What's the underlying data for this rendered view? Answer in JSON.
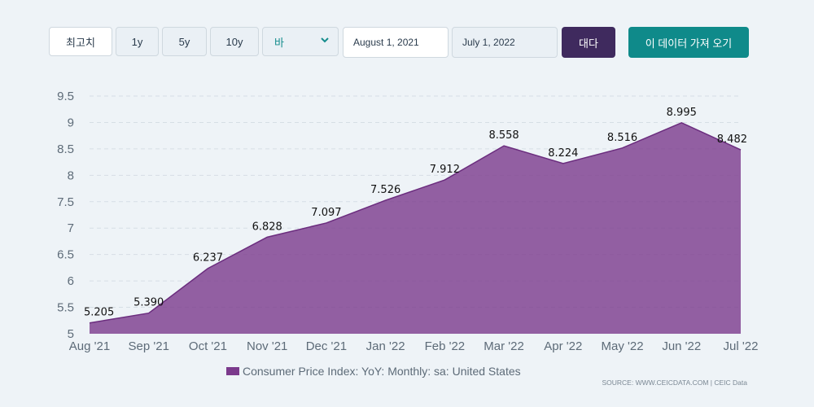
{
  "toolbar": {
    "max_label": "최고치",
    "range_1y": "1y",
    "range_5y": "5y",
    "range_10y": "10y",
    "chart_type_value": "바",
    "start_date": "August 1, 2021",
    "end_date": "July 1, 2022",
    "apply_label": "대다",
    "get_data_label": "이 데이터 가져 오기"
  },
  "legend": {
    "label": "Consumer Price Index: YoY: Monthly: sa: United States"
  },
  "source": "SOURCE: WWW.CEICDATA.COM | CEIC Data",
  "colors": {
    "series_fill": "#7b3a8c",
    "series_line": "#6b2d7e",
    "apply_button": "#3f2a5e",
    "get_data_button": "#0f8a8a",
    "background": "#eef3f7"
  },
  "chart_data": {
    "type": "area",
    "title": "",
    "xlabel": "",
    "ylabel": "",
    "categories": [
      "Aug '21",
      "Sep '21",
      "Oct '21",
      "Nov '21",
      "Dec '21",
      "Jan '22",
      "Feb '22",
      "Mar '22",
      "Apr '22",
      "May '22",
      "Jun '22",
      "Jul '22"
    ],
    "series": [
      {
        "name": "Consumer Price Index: YoY: Monthly: sa: United States",
        "values": [
          5.205,
          5.39,
          6.237,
          6.828,
          7.097,
          7.526,
          7.912,
          8.558,
          8.224,
          8.516,
          8.995,
          8.482
        ],
        "labels": [
          "5.205",
          "5.390",
          "6.237",
          "6.828",
          "7.097",
          "7.526",
          "7.912",
          "8.558",
          "8.224",
          "8.516",
          "8.995",
          "8.482"
        ]
      }
    ],
    "ylim": [
      5,
      9.5
    ],
    "yticks": [
      5,
      5.5,
      6,
      6.5,
      7,
      7.5,
      8,
      8.5,
      9,
      9.5
    ],
    "ytick_labels": [
      "5",
      "5.5",
      "6",
      "6.5",
      "7",
      "7.5",
      "8",
      "8.5",
      "9",
      "9.5"
    ],
    "grid": true,
    "legend_position": "bottom"
  }
}
